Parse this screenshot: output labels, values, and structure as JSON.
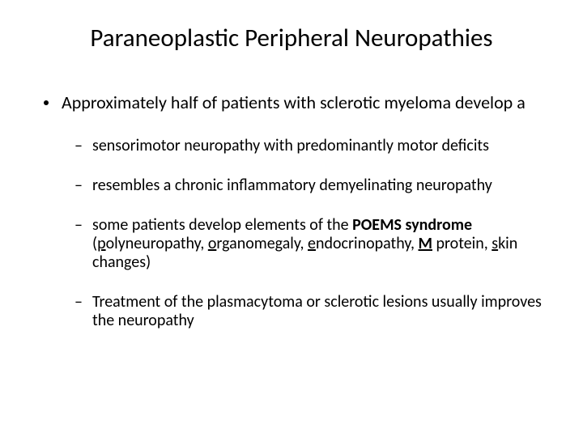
{
  "background_color": "#ffffff",
  "text_color": "#000000",
  "font_family": "Calibri",
  "title": {
    "text": "Paraneoplastic Peripheral Neuropathies",
    "fontsize": 31,
    "weight": 400,
    "align": "center"
  },
  "bullets": {
    "level1_fontsize": 22,
    "level2_fontsize": 20,
    "disc_color": "#000000",
    "items": [
      {
        "text": "Approximately half of patients with sclerotic myeloma develop a",
        "children": [
          {
            "text": "sensorimotor neuropathy with predominantly motor deficits"
          },
          {
            "text": "resembles a chronic inflammatory demyelinating neuropathy"
          },
          {
            "prefix": " some patients develop elements of the ",
            "poems_label": "POEMS syndrome",
            "paren_open": " (",
            "p1_u": "p",
            "p1_rest": "olyneuropathy, ",
            "p2_u": "o",
            "p2_rest": "rganomegaly, ",
            "p3_u": "e",
            "p3_rest": "ndocrinopathy, ",
            "p4_u": "M",
            "p4_rest": " protein, ",
            "p5_u": "s",
            "p5_rest": "kin changes)",
            "is_poems": true
          },
          {
            "text": "Treatment of the plasmacytoma or sclerotic lesions usually improves the neuropathy"
          }
        ]
      }
    ]
  }
}
